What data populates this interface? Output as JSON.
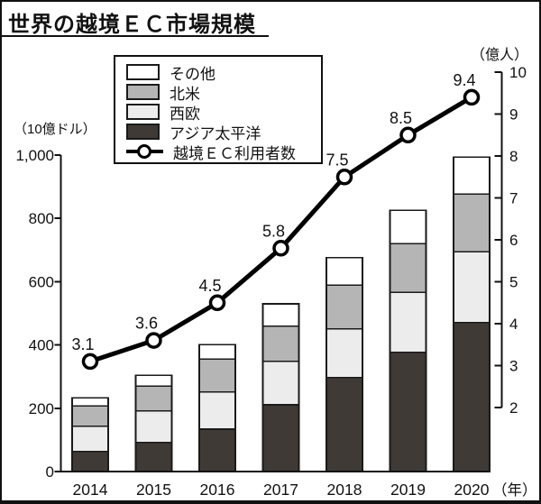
{
  "title": "世界の越境ＥＣ市場規模",
  "axes": {
    "left_unit": "（10億ドル）",
    "right_unit": "（億人）"
  },
  "legend": {
    "items": [
      {
        "label": "その他",
        "swatch": "box",
        "color": "#ffffff"
      },
      {
        "label": "北米",
        "swatch": "box",
        "color": "#b5b5b5"
      },
      {
        "label": "西欧",
        "swatch": "box",
        "color": "#ececec"
      },
      {
        "label": "アジア太平洋",
        "swatch": "box",
        "color": "#403a36"
      },
      {
        "label": "越境ＥＣ利用者数",
        "swatch": "line",
        "color": "#000000"
      }
    ]
  },
  "chart_data": {
    "type": "bar",
    "subtype": "stacked-bars-with-line-overlay",
    "title": "世界の越境ＥＣ市場規模",
    "categories": [
      "2014",
      "2015",
      "2016",
      "2017",
      "2018",
      "2019",
      "2020"
    ],
    "series": [
      {
        "name": "アジア太平洋",
        "color": "#403a36",
        "values": [
          63,
          92,
          134,
          211,
          297,
          377,
          471
        ]
      },
      {
        "name": "西欧",
        "color": "#ececec",
        "values": [
          80,
          100,
          117,
          137,
          154,
          189,
          223
        ]
      },
      {
        "name": "北米",
        "color": "#b5b5b5",
        "values": [
          64,
          78,
          104,
          112,
          138,
          154,
          183
        ]
      },
      {
        "name": "その他",
        "color": "#ffffff",
        "values": [
          26,
          34,
          46,
          70,
          87,
          106,
          117
        ]
      }
    ],
    "stack_order_bottom_to_top": [
      "アジア太平洋",
      "西欧",
      "北米",
      "その他"
    ],
    "line_series": {
      "name": "越境ＥＣ利用者数",
      "axis": "right",
      "color": "#000000",
      "values": [
        3.1,
        3.6,
        4.5,
        5.8,
        7.5,
        8.5,
        9.4
      ],
      "point_labels": [
        "3.1",
        "3.6",
        "4.5",
        "5.8",
        "7.5",
        "8.5",
        "9.4"
      ]
    },
    "left_axis": {
      "label": "（10億ドル）",
      "min": 0,
      "max": 1000,
      "ticks": [
        0,
        200,
        400,
        600,
        800,
        1000
      ],
      "tick_labels": [
        "0",
        "200",
        "400",
        "600",
        "800",
        "1,000"
      ]
    },
    "right_axis": {
      "label": "（億人）",
      "min": 2,
      "max": 10,
      "ticks": [
        2,
        3,
        4,
        5,
        6,
        7,
        8,
        9,
        10
      ],
      "tick_labels": [
        "2",
        "3",
        "4",
        "5",
        "6",
        "7",
        "8",
        "9",
        "10"
      ]
    },
    "x_label_suffix": "（年）",
    "grid": false,
    "legend_position": "top-left"
  }
}
